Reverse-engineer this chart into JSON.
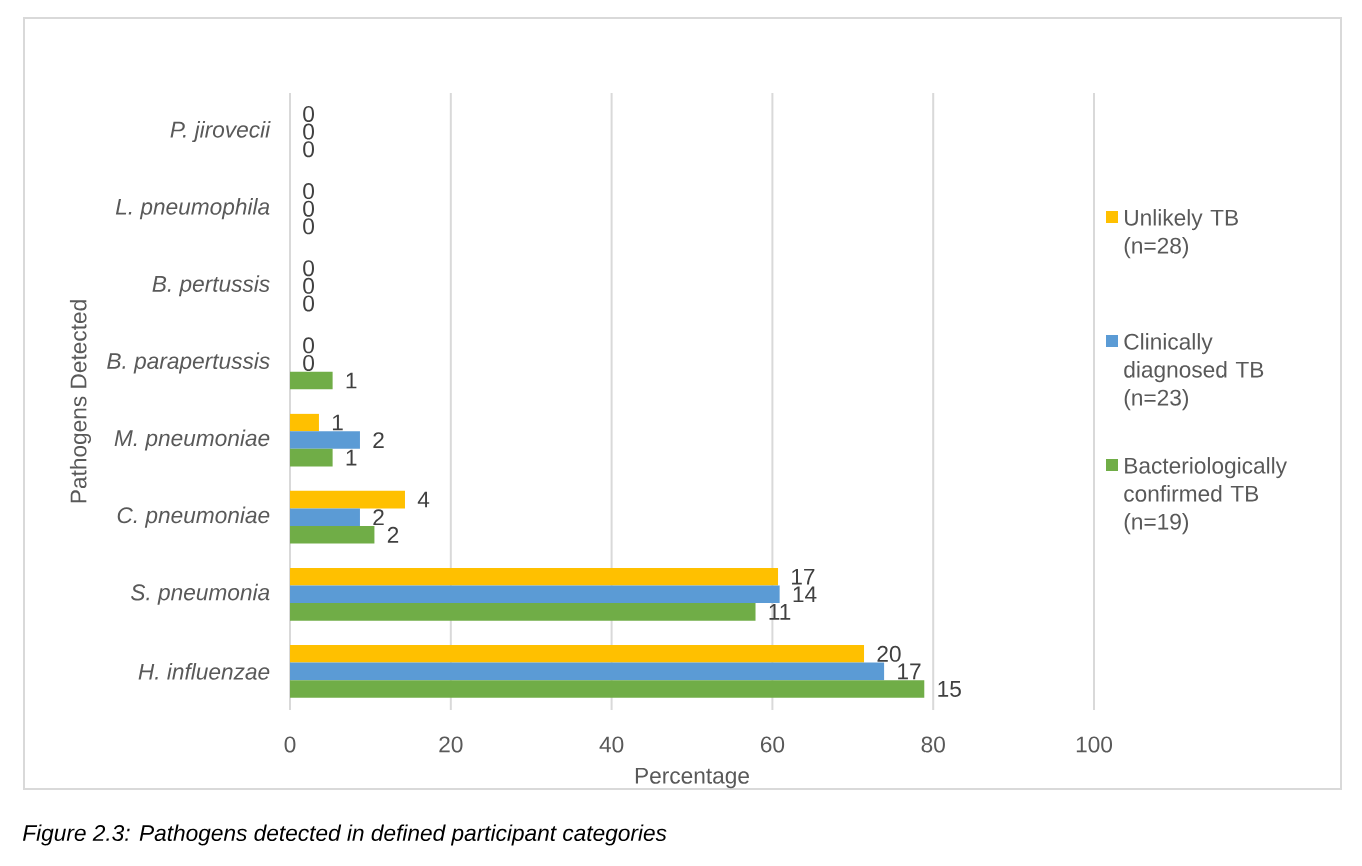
{
  "chart_data": {
    "type": "bar",
    "orientation": "horizontal",
    "categories": [
      "P. jirovecii",
      "L. pneumophila",
      "B. pertussis",
      "B. parapertussis",
      "M. pneumoniae",
      "C. pneumoniae",
      "S. pneumonia",
      "H. influenzae"
    ],
    "series": [
      {
        "name": "Unlikely TB (n=28)",
        "color": "#ffc000",
        "values": [
          0,
          0,
          0,
          0,
          3.6,
          14.3,
          60.7,
          71.4
        ]
      },
      {
        "name": "Clinically diagnosed TB (n=23)",
        "color": "#5b9bd5",
        "values": [
          0,
          0,
          0,
          0,
          8.7,
          8.7,
          60.9,
          73.9
        ]
      },
      {
        "name": "Bacteriologically confirmed TB (n=19)",
        "color": "#70ad47",
        "values": [
          0,
          0,
          0,
          5.3,
          5.3,
          10.5,
          57.9,
          78.9
        ]
      }
    ],
    "xlabel": "Percentage",
    "ylabel": "Pathogens Detected",
    "xlim": [
      0,
      100
    ],
    "xticks": [
      0,
      20,
      40,
      60,
      80,
      100
    ],
    "grid": "x",
    "legend": "right",
    "annotations": [
      "Figure 2.3: Pathogens detected in defined participant categories",
      "0",
      "0",
      "0",
      "0",
      "0",
      "0",
      "0",
      "0",
      "0",
      "0",
      "0",
      "1",
      "1",
      "2",
      "1",
      "4",
      "2",
      "2",
      "17",
      "14",
      "11",
      "20",
      "17",
      "15"
    ]
  }
}
